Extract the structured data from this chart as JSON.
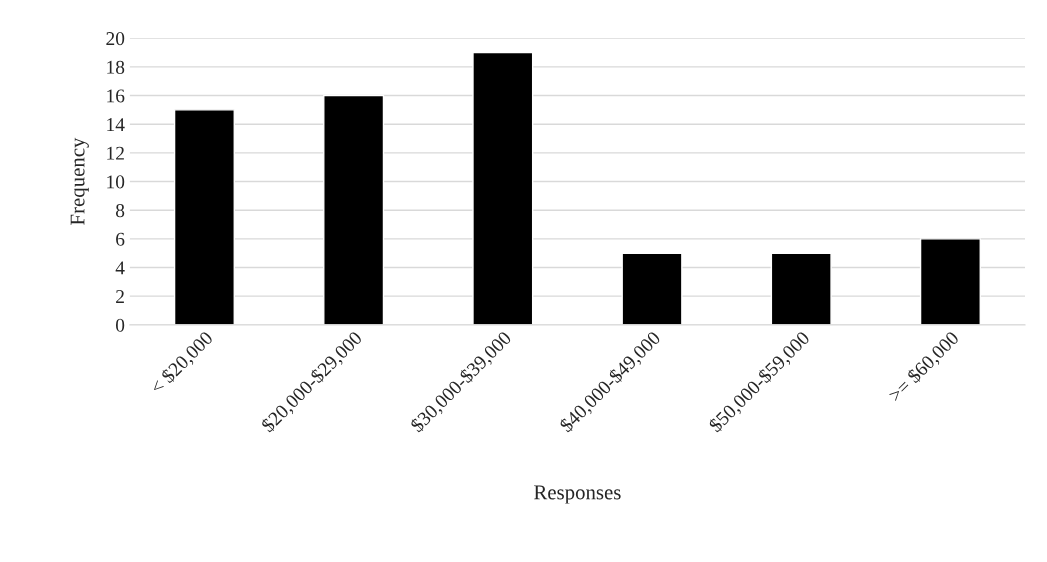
{
  "chart_data": {
    "type": "bar",
    "xlabel": "Responses",
    "ylabel": "Frequency",
    "categories": [
      "< $20,000",
      "$20,000-$29,000",
      "$30,000-$39,000",
      "$40,000-$49,000",
      "$50,000-$59,000",
      ">= $60,000"
    ],
    "values": [
      15,
      16,
      19,
      5,
      5,
      6
    ],
    "color": "#000000",
    "ylim": [
      0,
      20
    ],
    "yticks": [
      0,
      2,
      4,
      6,
      8,
      10,
      12,
      14,
      16,
      18,
      20
    ],
    "grid": "y",
    "legend": false
  }
}
